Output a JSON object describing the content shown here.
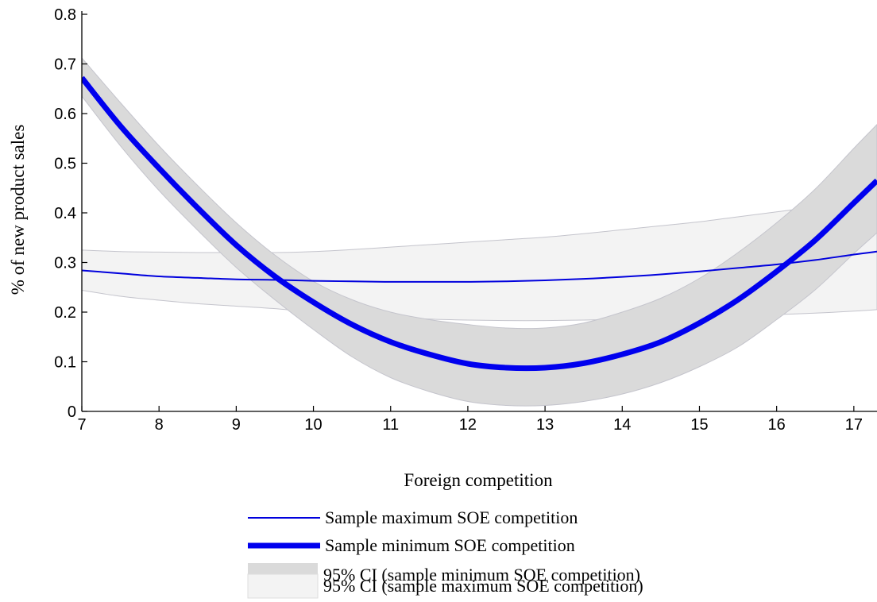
{
  "chart_data": {
    "type": "line",
    "xlabel": "Foreign competition",
    "ylabel": "% of new product sales",
    "xlim": [
      7,
      17.3
    ],
    "ylim": [
      0,
      0.8
    ],
    "x_ticks": [
      "7",
      "8",
      "9",
      "10",
      "11",
      "12",
      "13",
      "14",
      "15",
      "16",
      "17"
    ],
    "y_ticks": [
      "0",
      "0.1",
      "0.2",
      "0.3",
      "0.4",
      "0.5",
      "0.6",
      "0.7",
      "0.8"
    ],
    "grid": false,
    "legend_position": "bottom",
    "x": [
      7,
      7.5,
      8,
      8.5,
      9,
      9.5,
      10,
      10.5,
      11,
      11.5,
      12,
      12.5,
      13,
      13.5,
      14,
      14.5,
      15,
      15.5,
      16,
      16.5,
      17,
      17.3
    ],
    "series": [
      {
        "name": "Sample maximum SOE competition",
        "kind": "line-thin",
        "color": "#0000dd",
        "values": [
          0.284,
          0.278,
          0.272,
          0.269,
          0.266,
          0.265,
          0.263,
          0.262,
          0.261,
          0.261,
          0.261,
          0.262,
          0.264,
          0.267,
          0.271,
          0.276,
          0.282,
          0.289,
          0.296,
          0.305,
          0.316,
          0.322
        ]
      },
      {
        "name": "Sample minimum SOE competition",
        "kind": "line-thick",
        "color": "#0000ee",
        "values": [
          0.672,
          0.575,
          0.49,
          0.41,
          0.335,
          0.272,
          0.22,
          0.175,
          0.14,
          0.115,
          0.096,
          0.088,
          0.088,
          0.097,
          0.115,
          0.14,
          0.178,
          0.225,
          0.282,
          0.345,
          0.42,
          0.465
        ]
      },
      {
        "name": "95% CI (sample minimum SOE competition)",
        "kind": "band",
        "color": "#dadada",
        "lower": [
          0.635,
          0.535,
          0.445,
          0.365,
          0.29,
          0.225,
          0.165,
          0.11,
          0.068,
          0.04,
          0.02,
          0.012,
          0.012,
          0.02,
          0.035,
          0.058,
          0.09,
          0.13,
          0.185,
          0.245,
          0.318,
          0.36
        ],
        "upper": [
          0.712,
          0.622,
          0.535,
          0.455,
          0.38,
          0.315,
          0.262,
          0.225,
          0.2,
          0.185,
          0.175,
          0.168,
          0.168,
          0.178,
          0.2,
          0.228,
          0.268,
          0.32,
          0.38,
          0.448,
          0.53,
          0.578
        ]
      },
      {
        "name": "95% CI (sample maximum SOE competition)",
        "kind": "band",
        "color": "#f3f3f3",
        "lower": [
          0.244,
          0.232,
          0.224,
          0.217,
          0.212,
          0.207,
          0.2,
          0.195,
          0.19,
          0.186,
          0.184,
          0.183,
          0.183,
          0.184,
          0.186,
          0.188,
          0.19,
          0.193,
          0.195,
          0.198,
          0.202,
          0.205
        ],
        "upper": [
          0.325,
          0.322,
          0.321,
          0.32,
          0.32,
          0.32,
          0.322,
          0.326,
          0.331,
          0.336,
          0.341,
          0.346,
          0.351,
          0.358,
          0.366,
          0.374,
          0.382,
          0.392,
          0.402,
          0.412,
          0.422,
          0.43
        ]
      }
    ]
  }
}
